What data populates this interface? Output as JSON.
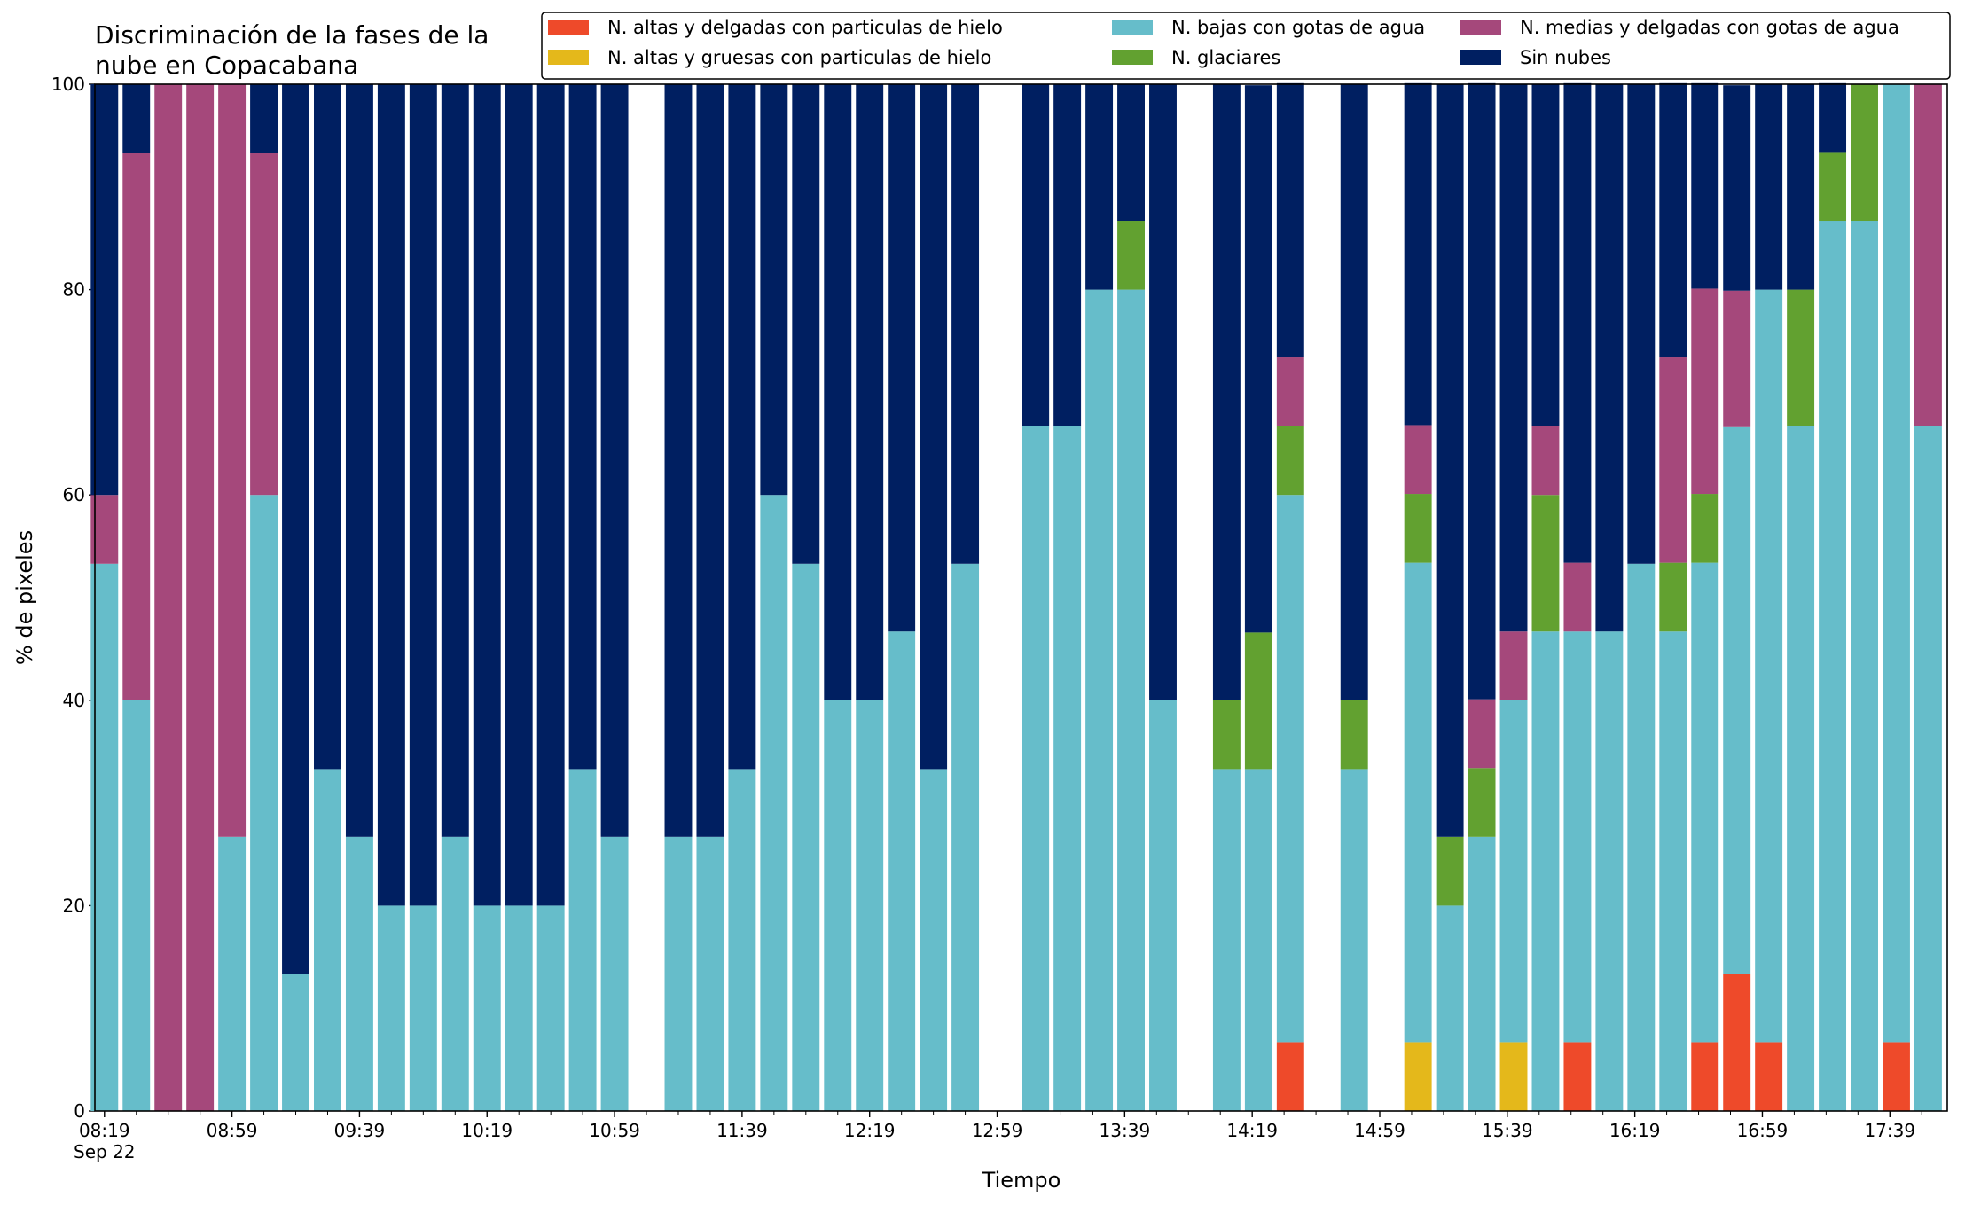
{
  "chart_data": {
    "type": "bar",
    "stacked": true,
    "title_lines": [
      "Discriminación de la fases de la",
      "nube en Copacabana"
    ],
    "xlabel": "Tiempo",
    "ylabel": "% de pixeles",
    "ylim": [
      0,
      100
    ],
    "yticks": [
      0,
      20,
      40,
      60,
      80,
      100
    ],
    "x_unit": "minutes after 08:19 (Sep 22)",
    "xlim": [
      -3,
      578
    ],
    "x_tick_labels": [
      {
        "x": 0,
        "lines": [
          "08:19",
          "Sep 22"
        ]
      },
      {
        "x": 40,
        "lines": [
          "08:59"
        ]
      },
      {
        "x": 80,
        "lines": [
          "09:39"
        ]
      },
      {
        "x": 120,
        "lines": [
          "10:19"
        ]
      },
      {
        "x": 160,
        "lines": [
          "10:59"
        ]
      },
      {
        "x": 200,
        "lines": [
          "11:39"
        ]
      },
      {
        "x": 240,
        "lines": [
          "12:19"
        ]
      },
      {
        "x": 280,
        "lines": [
          "12:59"
        ]
      },
      {
        "x": 320,
        "lines": [
          "13:39"
        ]
      },
      {
        "x": 360,
        "lines": [
          "14:19"
        ]
      },
      {
        "x": 400,
        "lines": [
          "14:59"
        ]
      },
      {
        "x": 440,
        "lines": [
          "15:39"
        ]
      },
      {
        "x": 480,
        "lines": [
          "16:19"
        ]
      },
      {
        "x": 520,
        "lines": [
          "16:59"
        ]
      },
      {
        "x": 560,
        "lines": [
          "17:39"
        ]
      }
    ],
    "minor_tick_step": 10,
    "legend": {
      "placement": "top-right",
      "columns": 3
    },
    "series": [
      {
        "key": "hielo_delgadas",
        "name": "N. altas y delgadas con particulas de hielo",
        "color": "#ee4a2a"
      },
      {
        "key": "hielo_gruesas",
        "name": "N. altas y gruesas con particulas de hielo",
        "color": "#e4b81b"
      },
      {
        "key": "bajas_agua",
        "name": "N. bajas con gotas de agua",
        "color": "#66bdca"
      },
      {
        "key": "glaciares",
        "name": "N. glaciares",
        "color": "#62a130"
      },
      {
        "key": "medias_agua",
        "name": "N. medias y delgadas con gotas de agua",
        "color": "#a5487b"
      },
      {
        "key": "sin_nubes",
        "name": "Sin nubes",
        "color": "#001f61"
      }
    ],
    "legend_order": [
      "hielo_delgadas",
      "hielo_gruesas",
      "bajas_agua",
      "glaciares",
      "medias_agua",
      "sin_nubes"
    ],
    "bars": [
      {
        "x": 0,
        "values": [
          0,
          0,
          53.3,
          0,
          6.7,
          40
        ]
      },
      {
        "x": 10,
        "values": [
          0,
          0,
          40,
          0,
          53.3,
          6.7
        ]
      },
      {
        "x": 20,
        "values": [
          0,
          0,
          0,
          0,
          100,
          0
        ]
      },
      {
        "x": 30,
        "values": [
          0,
          0,
          0,
          0,
          100,
          0
        ]
      },
      {
        "x": 40,
        "values": [
          0,
          0,
          26.7,
          0,
          73.3,
          0
        ]
      },
      {
        "x": 50,
        "values": [
          0,
          0,
          60,
          0,
          33.3,
          6.7
        ]
      },
      {
        "x": 60,
        "values": [
          0,
          0,
          13.3,
          0,
          0,
          86.7
        ]
      },
      {
        "x": 70,
        "values": [
          0,
          0,
          33.3,
          0,
          0,
          66.7
        ]
      },
      {
        "x": 80,
        "values": [
          0,
          0,
          26.7,
          0,
          0,
          73.3
        ]
      },
      {
        "x": 90,
        "values": [
          0,
          0,
          20,
          0,
          0,
          80
        ]
      },
      {
        "x": 100,
        "values": [
          0,
          0,
          20,
          0,
          0,
          80
        ]
      },
      {
        "x": 110,
        "values": [
          0,
          0,
          26.7,
          0,
          0,
          73.3
        ]
      },
      {
        "x": 120,
        "values": [
          0,
          0,
          20,
          0,
          0,
          80
        ]
      },
      {
        "x": 130,
        "values": [
          0,
          0,
          20,
          0,
          0,
          80
        ]
      },
      {
        "x": 140,
        "values": [
          0,
          0,
          20,
          0,
          0,
          80
        ]
      },
      {
        "x": 150,
        "values": [
          0,
          0,
          33.3,
          0,
          0,
          66.7
        ]
      },
      {
        "x": 160,
        "values": [
          0,
          0,
          26.7,
          0,
          0,
          73.3
        ]
      },
      {
        "x": 180,
        "values": [
          0,
          0,
          26.7,
          0,
          0,
          73.3
        ]
      },
      {
        "x": 190,
        "values": [
          0,
          0,
          26.7,
          0,
          0,
          73.3
        ]
      },
      {
        "x": 200,
        "values": [
          0,
          0,
          33.3,
          0,
          0,
          66.7
        ]
      },
      {
        "x": 210,
        "values": [
          0,
          0,
          60,
          0,
          0,
          40
        ]
      },
      {
        "x": 220,
        "values": [
          0,
          0,
          53.3,
          0,
          0,
          46.7
        ]
      },
      {
        "x": 230,
        "values": [
          0,
          0,
          40,
          0,
          0,
          60
        ]
      },
      {
        "x": 240,
        "values": [
          0,
          0,
          40,
          0,
          0,
          60
        ]
      },
      {
        "x": 250,
        "values": [
          0,
          0,
          46.7,
          0,
          0,
          53.3
        ]
      },
      {
        "x": 260,
        "values": [
          0,
          0,
          33.3,
          0,
          0,
          66.7
        ]
      },
      {
        "x": 270,
        "values": [
          0,
          0,
          53.3,
          0,
          0,
          46.7
        ]
      },
      {
        "x": 292,
        "values": [
          0,
          0,
          66.7,
          0,
          0,
          33.3
        ]
      },
      {
        "x": 302,
        "values": [
          0,
          0,
          66.7,
          0,
          0,
          33.3
        ]
      },
      {
        "x": 312,
        "values": [
          0,
          0,
          80,
          0,
          0,
          20
        ]
      },
      {
        "x": 322,
        "values": [
          0,
          0,
          80,
          6.7,
          0,
          13.3
        ]
      },
      {
        "x": 332,
        "values": [
          0,
          0,
          40,
          0,
          0,
          60
        ]
      },
      {
        "x": 352,
        "values": [
          0,
          0,
          33.3,
          6.7,
          0,
          60
        ]
      },
      {
        "x": 362,
        "values": [
          0,
          0,
          33.3,
          13.3,
          0,
          53.3
        ]
      },
      {
        "x": 372,
        "values": [
          6.7,
          0,
          53.3,
          6.7,
          6.7,
          26.7
        ]
      },
      {
        "x": 392,
        "values": [
          0,
          0,
          33.3,
          6.7,
          0,
          60
        ]
      },
      {
        "x": 412,
        "values": [
          0,
          6.7,
          46.7,
          6.7,
          6.7,
          33.3
        ]
      },
      {
        "x": 422,
        "values": [
          0,
          0,
          20,
          6.7,
          0,
          73.3
        ]
      },
      {
        "x": 432,
        "values": [
          0,
          0,
          26.7,
          6.7,
          6.7,
          60
        ]
      },
      {
        "x": 442,
        "values": [
          0,
          6.7,
          33.3,
          0,
          6.7,
          53.3
        ]
      },
      {
        "x": 452,
        "values": [
          0,
          0,
          46.7,
          13.3,
          6.7,
          33.3
        ]
      },
      {
        "x": 462,
        "values": [
          6.7,
          0,
          40,
          0,
          6.7,
          46.7
        ]
      },
      {
        "x": 472,
        "values": [
          0,
          0,
          46.7,
          0,
          0,
          53.3
        ]
      },
      {
        "x": 482,
        "values": [
          0,
          0,
          53.3,
          0,
          0,
          46.7
        ]
      },
      {
        "x": 492,
        "values": [
          0,
          0,
          46.7,
          6.7,
          20,
          26.7
        ]
      },
      {
        "x": 502,
        "values": [
          6.7,
          0,
          46.7,
          6.7,
          20,
          20
        ]
      },
      {
        "x": 512,
        "values": [
          13.3,
          0,
          53.3,
          0,
          13.3,
          20
        ]
      },
      {
        "x": 522,
        "values": [
          6.7,
          0,
          73.3,
          0,
          0,
          20
        ]
      },
      {
        "x": 532,
        "values": [
          0,
          0,
          66.7,
          13.3,
          0,
          20
        ]
      },
      {
        "x": 542,
        "values": [
          0,
          0,
          86.7,
          6.7,
          0,
          6.7
        ]
      },
      {
        "x": 552,
        "values": [
          0,
          0,
          86.7,
          13.3,
          0,
          0
        ]
      },
      {
        "x": 562,
        "values": [
          6.7,
          0,
          93.3,
          0,
          0,
          0
        ]
      },
      {
        "x": 572,
        "values": [
          0,
          0,
          66.7,
          0,
          33.3,
          0
        ]
      }
    ]
  }
}
